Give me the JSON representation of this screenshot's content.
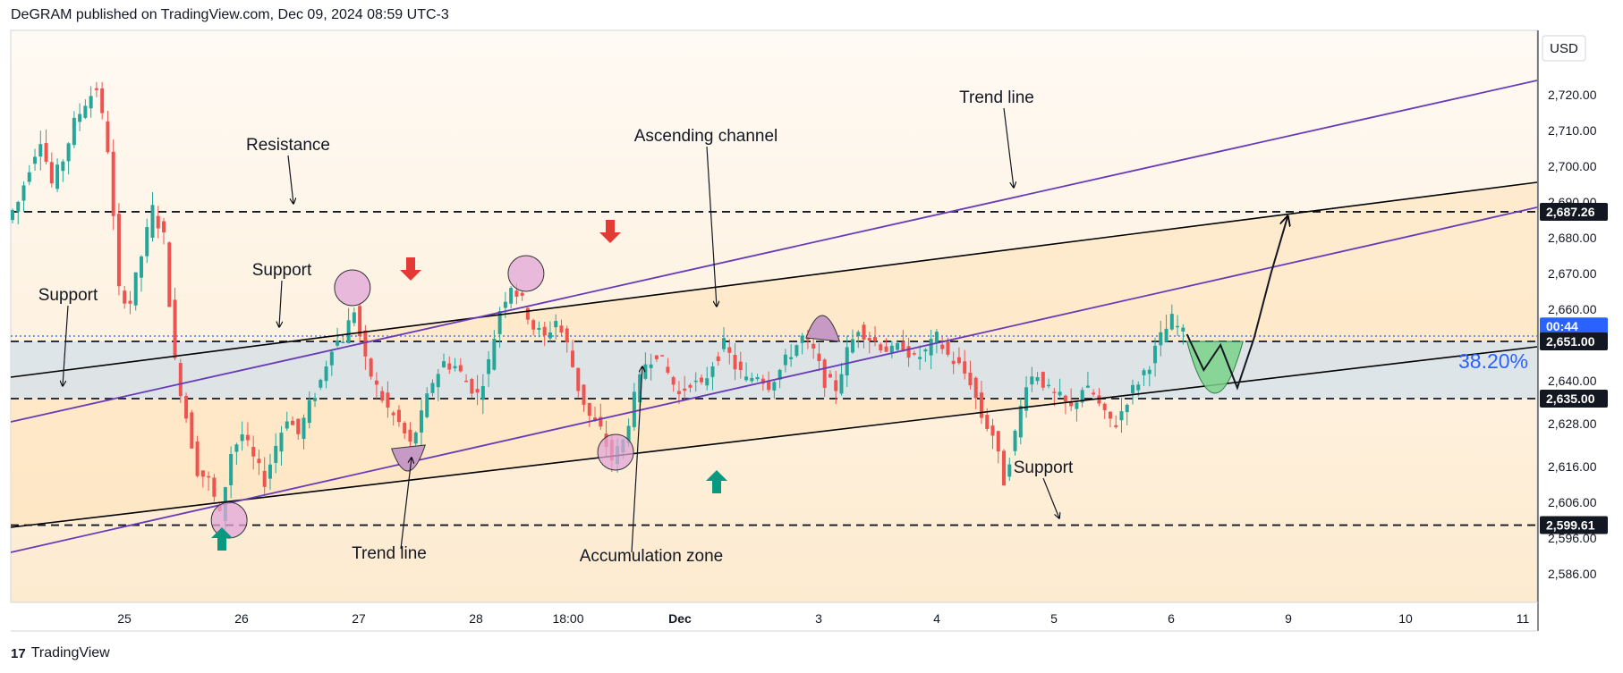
{
  "header": {
    "text": "DeGRAM published on TradingView.com, Dec 09, 2024 08:59 UTC-3"
  },
  "footer": {
    "logo_glyph": "17",
    "brand": "TradingView"
  },
  "price_axis": {
    "currency": "USD",
    "ticks": [
      "2,720.00",
      "2,710.00",
      "2,700.00",
      "2,690.00",
      "2,680.00",
      "2,670.00",
      "2,660.00",
      "2,651.00",
      "2,640.00",
      "2,628.00",
      "2,616.00",
      "2,606.00",
      "2,596.00",
      "2,586.00"
    ],
    "tick_values": [
      2720,
      2710,
      2700,
      2690,
      2680,
      2670,
      2660,
      2651,
      2640,
      2628,
      2616,
      2606,
      2596,
      2586
    ],
    "badges": [
      {
        "text": "2,687.26",
        "value": 2687.26,
        "color": "#131722"
      },
      {
        "text": "00:44",
        "value": 2655.2,
        "color": "#2962ff"
      },
      {
        "text": "2,651.00",
        "value": 2651,
        "color": "#131722"
      },
      {
        "text": "2,635.00",
        "value": 2635,
        "color": "#131722"
      },
      {
        "text": "2,599.61",
        "value": 2599.61,
        "color": "#131722"
      }
    ]
  },
  "time_axis": {
    "labels": [
      "25",
      "26",
      "27",
      "28",
      "18:00",
      "Dec",
      "3",
      "4",
      "5",
      "6",
      "9",
      "10",
      "11"
    ]
  },
  "annotations": {
    "resistance": "Resistance",
    "support_left": "Support",
    "support_mid": "Support",
    "support_bottom": "Support",
    "ascending_channel": "Ascending channel",
    "trend_line_top": "Trend line",
    "trend_line_bottom": "Trend line",
    "accumulation_zone": "Accumulation zone",
    "fib_level": "38.20%"
  },
  "colors": {
    "up": "#26a69a",
    "down": "#ef5350",
    "channel_line": "#000000",
    "trend_line": "#673ab7",
    "zone_fill": "#d6e4ec",
    "bg_top": "#fff5ea",
    "bg_mid": "#fde9c8",
    "circle_fill": "#e1a6d8",
    "green_arrow": "#089981",
    "red_arrow": "#e53935",
    "projection_fill": "#7bd38a",
    "fib_text": "#2962ff"
  },
  "chart_data": {
    "type": "candlestick",
    "title": "",
    "currency": "USD",
    "ylim": [
      2578,
      2738
    ],
    "x_labels": [
      "25",
      "26",
      "27",
      "28",
      "18:00",
      "Dec",
      "3",
      "4",
      "5",
      "6",
      "9",
      "10",
      "11"
    ],
    "levels": {
      "resistance": 2687.26,
      "zone_top": 2651.0,
      "zone_bottom": 2635.0,
      "support": 2599.61,
      "last_price_time_left": "00:44"
    },
    "price_path": [
      [
        0,
        2685
      ],
      [
        2,
        2690
      ],
      [
        4,
        2700
      ],
      [
        6,
        2708
      ],
      [
        8,
        2695
      ],
      [
        10,
        2702
      ],
      [
        12,
        2712
      ],
      [
        14,
        2718
      ],
      [
        16,
        2722
      ],
      [
        18,
        2705
      ],
      [
        20,
        2665
      ],
      [
        22,
        2662
      ],
      [
        24,
        2675
      ],
      [
        26,
        2688
      ],
      [
        28,
        2680
      ],
      [
        30,
        2645
      ],
      [
        32,
        2630
      ],
      [
        34,
        2615
      ],
      [
        36,
        2612
      ],
      [
        38,
        2602
      ],
      [
        40,
        2620
      ],
      [
        42,
        2625
      ],
      [
        44,
        2618
      ],
      [
        46,
        2612
      ],
      [
        48,
        2622
      ],
      [
        50,
        2630
      ],
      [
        52,
        2625
      ],
      [
        54,
        2633
      ],
      [
        56,
        2640
      ],
      [
        58,
        2650
      ],
      [
        60,
        2652
      ],
      [
        62,
        2660
      ],
      [
        64,
        2645
      ],
      [
        66,
        2638
      ],
      [
        68,
        2632
      ],
      [
        70,
        2628
      ],
      [
        72,
        2622
      ],
      [
        74,
        2630
      ],
      [
        76,
        2640
      ],
      [
        78,
        2645
      ],
      [
        80,
        2644
      ],
      [
        82,
        2640
      ],
      [
        84,
        2636
      ],
      [
        86,
        2645
      ],
      [
        88,
        2660
      ],
      [
        90,
        2667
      ],
      [
        92,
        2662
      ],
      [
        94,
        2655
      ],
      [
        96,
        2652
      ],
      [
        98,
        2657
      ],
      [
        100,
        2650
      ],
      [
        102,
        2638
      ],
      [
        104,
        2630
      ],
      [
        106,
        2626
      ],
      [
        108,
        2618
      ],
      [
        110,
        2623
      ],
      [
        112,
        2635
      ],
      [
        114,
        2645
      ],
      [
        116,
        2648
      ],
      [
        118,
        2642
      ],
      [
        120,
        2636
      ],
      [
        122,
        2640
      ],
      [
        124,
        2638
      ],
      [
        126,
        2645
      ],
      [
        128,
        2650
      ],
      [
        130,
        2644
      ],
      [
        132,
        2640
      ],
      [
        134,
        2642
      ],
      [
        136,
        2639
      ],
      [
        138,
        2643
      ],
      [
        140,
        2648
      ],
      [
        142,
        2652
      ],
      [
        144,
        2648
      ],
      [
        146,
        2640
      ],
      [
        148,
        2638
      ],
      [
        150,
        2648
      ],
      [
        152,
        2655
      ],
      [
        154,
        2652
      ],
      [
        156,
        2650
      ],
      [
        158,
        2648
      ],
      [
        160,
        2650
      ],
      [
        162,
        2646
      ],
      [
        164,
        2648
      ],
      [
        166,
        2652
      ],
      [
        168,
        2647
      ],
      [
        170,
        2644
      ],
      [
        172,
        2640
      ],
      [
        174,
        2630
      ],
      [
        176,
        2625
      ],
      [
        178,
        2612
      ],
      [
        180,
        2625
      ],
      [
        182,
        2640
      ],
      [
        184,
        2642
      ],
      [
        186,
        2637
      ],
      [
        188,
        2635
      ],
      [
        190,
        2632
      ],
      [
        192,
        2638
      ],
      [
        194,
        2636
      ],
      [
        196,
        2630
      ],
      [
        198,
        2628
      ],
      [
        200,
        2635
      ],
      [
        202,
        2640
      ],
      [
        204,
        2645
      ],
      [
        206,
        2652
      ],
      [
        208,
        2657
      ],
      [
        210,
        2653
      ]
    ],
    "projection": [
      [
        210,
        2653
      ],
      [
        213,
        2643
      ],
      [
        216,
        2650
      ],
      [
        219,
        2638
      ],
      [
        222,
        2652
      ],
      [
        225,
        2670
      ],
      [
        228,
        2686
      ]
    ],
    "series": [
      {
        "name": "Trend line",
        "kind": "trend",
        "color": "#673ab7"
      },
      {
        "name": "Ascending channel",
        "kind": "channel",
        "color": "#000000"
      }
    ]
  }
}
